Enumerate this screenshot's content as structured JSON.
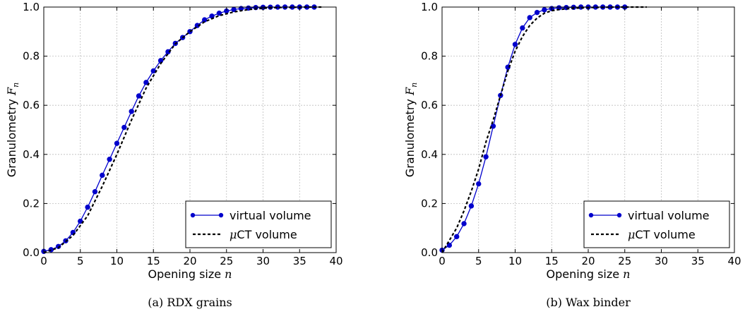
{
  "chart_data": [
    {
      "type": "line",
      "caption": "(a) RDX grains",
      "xlabel": "Opening size",
      "xlabel_var": "n",
      "ylabel": "Granulometry",
      "ylabel_var": "F",
      "ylabel_sub": "n",
      "xlim": [
        0,
        40
      ],
      "ylim": [
        0,
        1
      ],
      "xticks": [
        0,
        5,
        10,
        15,
        20,
        25,
        30,
        35,
        40
      ],
      "yticks": [
        0.0,
        0.2,
        0.4,
        0.6,
        0.8,
        1.0
      ],
      "grid": true,
      "legend_position": "bottom-right",
      "series": [
        {
          "name": "virtual volume",
          "style": "solid-markers",
          "color": "#0000cc",
          "x": [
            0,
            1,
            2,
            3,
            4,
            5,
            6,
            7,
            8,
            9,
            10,
            11,
            12,
            13,
            14,
            15,
            16,
            17,
            18,
            19,
            20,
            21,
            22,
            23,
            24,
            25,
            26,
            27,
            28,
            29,
            30,
            31,
            32,
            33,
            34,
            35,
            36,
            37
          ],
          "y": [
            0.005,
            0.012,
            0.025,
            0.048,
            0.082,
            0.128,
            0.185,
            0.248,
            0.315,
            0.38,
            0.445,
            0.51,
            0.575,
            0.638,
            0.693,
            0.74,
            0.782,
            0.818,
            0.852,
            0.876,
            0.9,
            0.925,
            0.948,
            0.963,
            0.975,
            0.984,
            0.99,
            0.994,
            0.996,
            0.998,
            0.999,
            0.9995,
            1.0,
            1.0,
            1.0,
            1.0,
            1.0,
            1.0
          ]
        },
        {
          "name": "μCT volume",
          "style": "dashed",
          "color": "#000000",
          "x": [
            0,
            2,
            4,
            6,
            8,
            10,
            12,
            14,
            16,
            18,
            20,
            22,
            24,
            26,
            28,
            30,
            32,
            34,
            36,
            38
          ],
          "y": [
            0.0,
            0.02,
            0.07,
            0.15,
            0.27,
            0.4,
            0.54,
            0.67,
            0.77,
            0.85,
            0.9,
            0.94,
            0.965,
            0.98,
            0.99,
            0.995,
            0.998,
            0.999,
            1.0,
            1.0
          ]
        }
      ]
    },
    {
      "type": "line",
      "caption": "(b) Wax binder",
      "xlabel": "Opening size",
      "xlabel_var": "n",
      "ylabel": "Granulometry",
      "ylabel_var": "F",
      "ylabel_sub": "n",
      "xlim": [
        0,
        40
      ],
      "ylim": [
        0,
        1
      ],
      "xticks": [
        0,
        5,
        10,
        15,
        20,
        25,
        30,
        35,
        40
      ],
      "yticks": [
        0.0,
        0.2,
        0.4,
        0.6,
        0.8,
        1.0
      ],
      "grid": true,
      "legend_position": "bottom-right",
      "series": [
        {
          "name": "virtual volume",
          "style": "solid-markers",
          "color": "#0000cc",
          "x": [
            0,
            1,
            2,
            3,
            4,
            5,
            6,
            7,
            8,
            9,
            10,
            11,
            12,
            13,
            14,
            15,
            16,
            17,
            18,
            19,
            20,
            21,
            22,
            23,
            24,
            25
          ],
          "y": [
            0.01,
            0.03,
            0.065,
            0.118,
            0.19,
            0.28,
            0.39,
            0.515,
            0.64,
            0.755,
            0.848,
            0.915,
            0.957,
            0.978,
            0.989,
            0.994,
            0.997,
            0.998,
            0.999,
            1.0,
            1.0,
            1.0,
            1.0,
            1.0,
            1.0,
            1.0
          ]
        },
        {
          "name": "μCT volume",
          "style": "dashed",
          "color": "#000000",
          "x": [
            0,
            1,
            2,
            3,
            4,
            5,
            6,
            7,
            8,
            9,
            10,
            11,
            12,
            13,
            14,
            15,
            16,
            18,
            20,
            22,
            24,
            26,
            28
          ],
          "y": [
            0.0,
            0.05,
            0.1,
            0.17,
            0.25,
            0.34,
            0.45,
            0.54,
            0.64,
            0.74,
            0.82,
            0.88,
            0.925,
            0.955,
            0.975,
            0.985,
            0.99,
            0.995,
            0.998,
            0.999,
            1.0,
            1.0,
            1.0
          ]
        }
      ]
    }
  ]
}
